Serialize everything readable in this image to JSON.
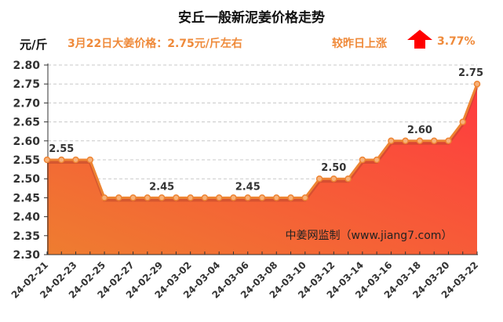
{
  "header": {
    "unit": "元/斤",
    "price_text": "3月22日大姜价格：2.75元/斤左右",
    "compare_text": "较昨日上涨",
    "change_percent": "3.77%",
    "change_icon": "up-arrow-icon",
    "change_color": "#ff0000"
  },
  "chart_data": {
    "type": "area",
    "title": "安丘一般新泥姜价格走势",
    "xlabel": "",
    "ylabel": "元/斤",
    "ylim": [
      2.3,
      2.8
    ],
    "yticks": [
      "2.30",
      "2.35",
      "2.40",
      "2.45",
      "2.50",
      "2.55",
      "2.60",
      "2.65",
      "2.70",
      "2.75",
      "2.80"
    ],
    "grid": "horizontal dashed",
    "x": [
      "24-02-21",
      "24-02-22",
      "24-02-23",
      "24-02-24",
      "24-02-25",
      "24-02-26",
      "24-02-27",
      "24-02-28",
      "24-02-29",
      "24-03-01",
      "24-03-02",
      "24-03-03",
      "24-03-04",
      "24-03-05",
      "24-03-06",
      "24-03-07",
      "24-03-08",
      "24-03-09",
      "24-03-10",
      "24-03-11",
      "24-03-12",
      "24-03-13",
      "24-03-14",
      "24-03-15",
      "24-03-16",
      "24-03-17",
      "24-03-18",
      "24-03-19",
      "24-03-20",
      "24-03-21",
      "24-03-22"
    ],
    "xtick_labels": [
      "24-02-21",
      "24-02-23",
      "24-02-25",
      "24-02-27",
      "24-02-29",
      "24-03-02",
      "24-03-04",
      "24-03-06",
      "24-03-08",
      "24-03-10",
      "24-03-12",
      "24-03-14",
      "24-03-16",
      "24-03-18",
      "24-03-20",
      "24-03-22"
    ],
    "values": [
      2.55,
      2.55,
      2.55,
      2.55,
      2.45,
      2.45,
      2.45,
      2.45,
      2.45,
      2.45,
      2.45,
      2.45,
      2.45,
      2.45,
      2.45,
      2.45,
      2.45,
      2.45,
      2.45,
      2.5,
      2.5,
      2.5,
      2.55,
      2.55,
      2.6,
      2.6,
      2.6,
      2.6,
      2.6,
      2.65,
      2.75
    ],
    "data_labels": [
      {
        "index": 1,
        "text": "2.55"
      },
      {
        "index": 8,
        "text": "2.45"
      },
      {
        "index": 14,
        "text": "2.45"
      },
      {
        "index": 20,
        "text": "2.50"
      },
      {
        "index": 26,
        "text": "2.60"
      },
      {
        "index": 30,
        "text": "2.75"
      }
    ],
    "watermark": "中姜网监制（www.jiang7.com）",
    "line_color": "#ee8433",
    "fill_colors": [
      "#ee7d30",
      "#ff3a3f"
    ]
  }
}
